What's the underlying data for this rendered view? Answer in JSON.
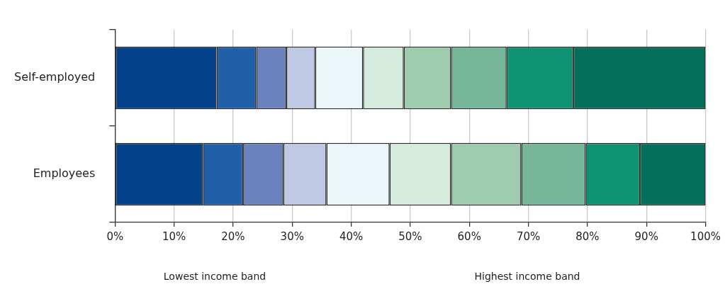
{
  "chart_data": {
    "type": "bar",
    "orientation": "horizontal",
    "stacked": true,
    "categories": [
      "Self-employed",
      "Employees"
    ],
    "series": [
      {
        "color": "#03428a",
        "values": [
          17.2,
          14.9
        ]
      },
      {
        "color": "#2060a8",
        "values": [
          6.7,
          6.8
        ]
      },
      {
        "color": "#6a83bc",
        "values": [
          5.1,
          6.8
        ]
      },
      {
        "color": "#bfc9e3",
        "values": [
          4.9,
          7.3
        ]
      },
      {
        "color": "#eaf6f8",
        "values": [
          8.1,
          10.7
        ]
      },
      {
        "color": "#d4ebdd",
        "values": [
          6.9,
          10.4
        ]
      },
      {
        "color": "#9fcbaf",
        "values": [
          8.0,
          11.9
        ]
      },
      {
        "color": "#77b799",
        "values": [
          9.4,
          10.9
        ]
      },
      {
        "color": "#0e9272",
        "values": [
          11.3,
          9.2
        ]
      },
      {
        "color": "#04705b",
        "values": [
          22.4,
          11.1
        ]
      }
    ],
    "xlim": [
      0,
      100
    ],
    "xticks": [
      {
        "value": 0,
        "label": "0%"
      },
      {
        "value": 10,
        "label": "10%"
      },
      {
        "value": 20,
        "label": "20%"
      },
      {
        "value": 30,
        "label": "30%"
      },
      {
        "value": 40,
        "label": "40%"
      },
      {
        "value": 50,
        "label": "50%"
      },
      {
        "value": 60,
        "label": "60%"
      },
      {
        "value": 70,
        "label": "70%"
      },
      {
        "value": 80,
        "label": "80%"
      },
      {
        "value": 90,
        "label": "90%"
      },
      {
        "value": 100,
        "label": "100%"
      }
    ],
    "grid": "x",
    "annotations": [
      "Lowest income band",
      "Highest income band"
    ]
  }
}
